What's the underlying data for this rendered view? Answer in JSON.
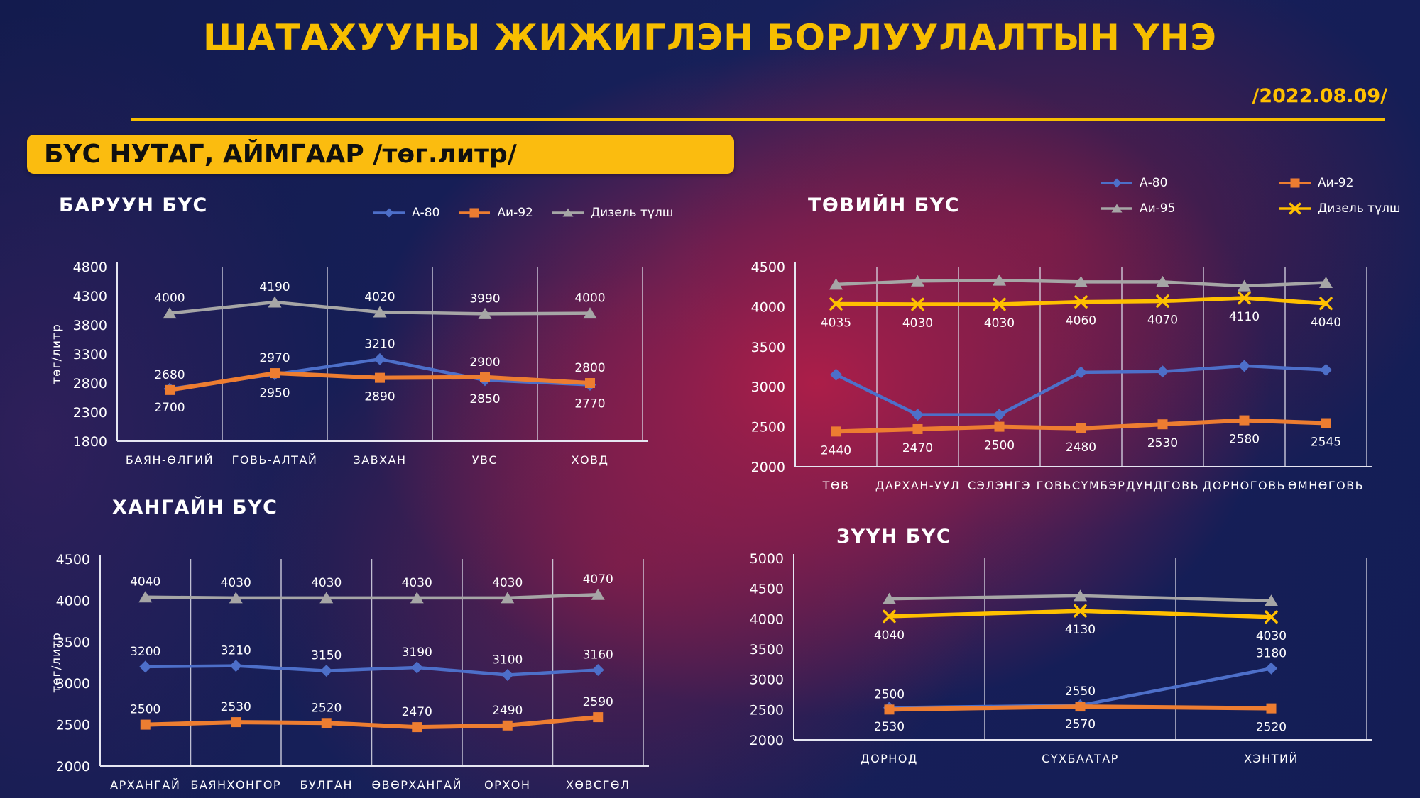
{
  "header": {
    "title": "ШАТАХУУНЫ ЖИЖИГЛЭН БОРЛУУЛАЛТЫН ҮНЭ",
    "date": "/2022.08.09/",
    "banner": "БҮС НУТАГ, АЙМГААР /төг.литр/"
  },
  "colors": {
    "accent_yellow": "#F7BE00",
    "banner_bg": "#FBBC0F",
    "banner_text": "#101010",
    "background_navy": "#131B4E",
    "background_crimson": "#8B2343",
    "series_a80_blue": "#4D6FC9",
    "series_ai92_orange": "#ED7D31",
    "series_ai95_grey": "#A6A6A6",
    "series_diesel_yellow": "#FFC000",
    "axis_white": "#E6E6F2"
  },
  "chart_data": [
    {
      "type": "line",
      "title": "БАРУУН БҮС",
      "ylabel": "төг/литр",
      "ylim": [
        1800,
        4800
      ],
      "ystep": 500,
      "grid": true,
      "legend": {
        "visible": true,
        "layout": "row",
        "items": [
          "А-80",
          "Аи-92",
          "Дизель түлш"
        ]
      },
      "categories": [
        "БАЯН-ӨЛГИЙ",
        "ГОВЬ-АЛТАЙ",
        "ЗАВХАН",
        "УВС",
        "ХОВД"
      ],
      "series": [
        {
          "name": "Дизель түлш",
          "color": "#A6A6A6",
          "marker": "triangle",
          "values": [
            4000,
            4190,
            4020,
            3990,
            4000
          ],
          "labels": [
            "a",
            "a",
            "a",
            "a",
            "a"
          ]
        },
        {
          "name": "А-80",
          "color": "#4D6FC9",
          "marker": "diamond",
          "values": [
            2700,
            2950,
            3210,
            2850,
            2770
          ],
          "labels": [
            "b",
            "b",
            "a",
            "b",
            "b"
          ]
        },
        {
          "name": "Аи-92",
          "color": "#ED7D31",
          "marker": "square",
          "values": [
            2680,
            2970,
            2890,
            2900,
            2800
          ],
          "labels": [
            "a",
            "a",
            "b",
            "a",
            "a"
          ]
        }
      ]
    },
    {
      "type": "line",
      "title": "ТӨВИЙН БҮС",
      "ylabel": "",
      "ylim": [
        2000,
        4500
      ],
      "ystep": 500,
      "grid": true,
      "legend": {
        "visible": true,
        "layout": "grid",
        "items": [
          "А-80",
          "Аи-92",
          "Аи-95",
          "Дизель түлш"
        ]
      },
      "categories": [
        "ТӨВ",
        "ДАРХАН-УУЛ",
        "СЭЛЭНГЭ",
        "ГОВЬСҮМБЭР",
        "ДУНДГОВЬ",
        "ДОРНОГОВЬ",
        "ӨМНӨГОВЬ"
      ],
      "series": [
        {
          "name": "Аи-95",
          "color": "#A6A6A6",
          "marker": "triangle",
          "values": [
            4280,
            4320,
            4330,
            4310,
            4310,
            4260,
            4300
          ],
          "labels": [
            null,
            null,
            null,
            null,
            null,
            null,
            null
          ]
        },
        {
          "name": "Дизель түлш",
          "color": "#FFC000",
          "marker": "x",
          "values": [
            4035,
            4030,
            4030,
            4060,
            4070,
            4110,
            4040
          ],
          "labels": [
            "b",
            "b",
            "b",
            "b",
            "b",
            "b",
            "b"
          ]
        },
        {
          "name": "А-80",
          "color": "#4D6FC9",
          "marker": "diamond",
          "values": [
            3150,
            2650,
            2650,
            3180,
            3190,
            3260,
            3210
          ],
          "labels": [
            null,
            null,
            null,
            null,
            null,
            null,
            null
          ]
        },
        {
          "name": "Аи-92",
          "color": "#ED7D31",
          "marker": "square",
          "values": [
            2440,
            2470,
            2500,
            2480,
            2530,
            2580,
            2545
          ],
          "labels": [
            "b",
            "b",
            "b",
            "b",
            "b",
            "b",
            "b"
          ]
        }
      ]
    },
    {
      "type": "line",
      "title": "ХАНГАЙН БҮС",
      "ylabel": "төг/литр",
      "ylim": [
        2000,
        4500
      ],
      "ystep": 500,
      "grid": true,
      "legend": {
        "visible": false,
        "layout": "none",
        "items": []
      },
      "categories": [
        "АРХАНГАЙ",
        "БАЯНХОНГОР",
        "БУЛГАН",
        "ӨВӨРХАНГАЙ",
        "ОРХОН",
        "ХӨВСГӨЛ"
      ],
      "series": [
        {
          "name": "Дизель түлш",
          "color": "#A6A6A6",
          "marker": "triangle",
          "values": [
            4040,
            4030,
            4030,
            4030,
            4030,
            4070
          ],
          "labels": [
            "a",
            "a",
            "a",
            "a",
            "a",
            "a"
          ]
        },
        {
          "name": "А-80",
          "color": "#4D6FC9",
          "marker": "diamond",
          "values": [
            3200,
            3210,
            3150,
            3190,
            3100,
            3160
          ],
          "labels": [
            "a",
            "a",
            "a",
            "a",
            "a",
            "a"
          ]
        },
        {
          "name": "Аи-92",
          "color": "#ED7D31",
          "marker": "square",
          "values": [
            2500,
            2530,
            2520,
            2470,
            2490,
            2590
          ],
          "labels": [
            "a",
            "a",
            "a",
            "a",
            "a",
            "a"
          ]
        }
      ]
    },
    {
      "type": "line",
      "title": "ЗҮҮН БҮС",
      "ylabel": "",
      "ylim": [
        2000,
        5000
      ],
      "ystep": 500,
      "grid": true,
      "legend": {
        "visible": false,
        "layout": "none",
        "items": []
      },
      "categories": [
        "ДОРНОД",
        "СҮХБААТАР",
        "ХЭНТИЙ"
      ],
      "series": [
        {
          "name": "Аи-95",
          "color": "#A6A6A6",
          "marker": "triangle",
          "values": [
            4330,
            4380,
            4300
          ],
          "labels": [
            null,
            null,
            null
          ]
        },
        {
          "name": "Дизель түлш",
          "color": "#FFC000",
          "marker": "x",
          "values": [
            4040,
            4130,
            4030
          ],
          "labels": [
            "b",
            "b",
            "b"
          ]
        },
        {
          "name": "А-80",
          "color": "#4D6FC9",
          "marker": "diamond",
          "values": [
            2530,
            2570,
            3180
          ],
          "labels": [
            "b",
            "b",
            "a"
          ]
        },
        {
          "name": "Аи-92",
          "color": "#ED7D31",
          "marker": "square",
          "values": [
            2500,
            2550,
            2520
          ],
          "labels": [
            "a",
            "a",
            "b"
          ]
        }
      ]
    }
  ]
}
